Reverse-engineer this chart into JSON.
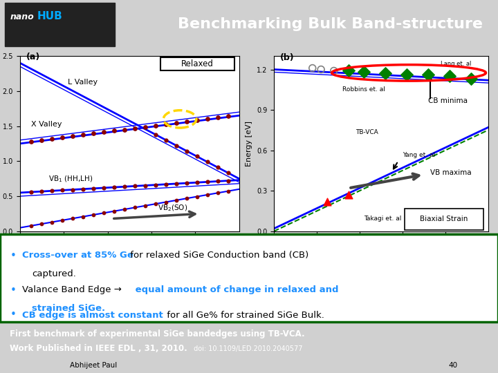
{
  "title": "Benchmarking Bulk Band-structure",
  "title_color": "#ffffff",
  "header_bg": "#3a3a3a",
  "main_bg": "#ffffff",
  "bullet1_colored": "Cross-over at 85% Ge",
  "bullet1_rest": " for relaxed SiGe Conduction band (CB)\n  captured.",
  "bullet2_black": "Valance Band Edge →",
  "bullet2_colored": " equal amount of change in relaxed and\n  strained SiGe.",
  "bullet3_colored": "CB edge is almost constant",
  "bullet3_rest": " for all Ge% for strained SiGe Bulk.",
  "footer_line1": "First benchmark of experimental SiGe bandedges using TB-VCA.",
  "footer_line2": "Work Published in IEEE EDL , 31, 2010.",
  "footer_doi": " doi: 10.1109/LED.2010.2040577",
  "footer_bg": "#000000",
  "footer_color": "#ffffff",
  "page_num": "40",
  "bullet_color": "#1e90ff",
  "bullet_outline_color": "#006400",
  "bottom_bar_color": "#000000"
}
